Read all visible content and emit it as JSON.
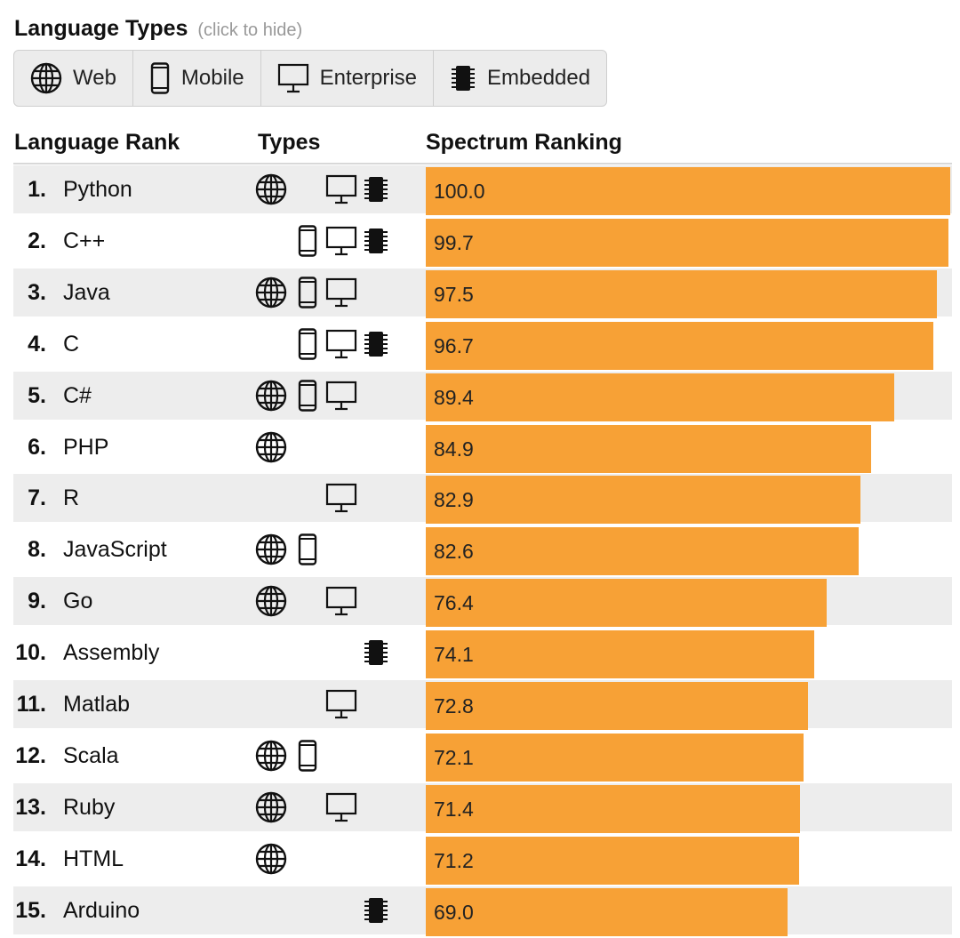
{
  "header": {
    "title": "Language Types",
    "hint": "(click to hide)"
  },
  "type_buttons": [
    {
      "label": "Web",
      "icon": "globe-icon"
    },
    {
      "label": "Mobile",
      "icon": "mobile-icon"
    },
    {
      "label": "Enterprise",
      "icon": "desktop-icon"
    },
    {
      "label": "Embedded",
      "icon": "chip-icon"
    }
  ],
  "columns": {
    "rank": "Language Rank",
    "types": "Types",
    "spectrum": "Spectrum Ranking"
  },
  "colors": {
    "bar": "#f7a136",
    "alt_row": "#ededed"
  },
  "chart_data": {
    "type": "bar",
    "orientation": "horizontal",
    "title": "",
    "xlabel": "",
    "ylabel": "",
    "xlim": [
      0,
      100
    ],
    "categories": [
      "Python",
      "C++",
      "Java",
      "C",
      "C#",
      "PHP",
      "R",
      "JavaScript",
      "Go",
      "Assembly",
      "Matlab",
      "Scala",
      "Ruby",
      "HTML",
      "Arduino"
    ],
    "rows": [
      {
        "rank": "1.",
        "name": "Python",
        "value": 100.0,
        "label": "100.0",
        "types": {
          "web": true,
          "mobile": false,
          "enterprise": true,
          "embedded": true
        }
      },
      {
        "rank": "2.",
        "name": "C++",
        "value": 99.7,
        "label": "99.7",
        "types": {
          "web": false,
          "mobile": true,
          "enterprise": true,
          "embedded": true
        }
      },
      {
        "rank": "3.",
        "name": "Java",
        "value": 97.5,
        "label": "97.5",
        "types": {
          "web": true,
          "mobile": true,
          "enterprise": true,
          "embedded": false
        }
      },
      {
        "rank": "4.",
        "name": "C",
        "value": 96.7,
        "label": "96.7",
        "types": {
          "web": false,
          "mobile": true,
          "enterprise": true,
          "embedded": true
        }
      },
      {
        "rank": "5.",
        "name": "C#",
        "value": 89.4,
        "label": "89.4",
        "types": {
          "web": true,
          "mobile": true,
          "enterprise": true,
          "embedded": false
        }
      },
      {
        "rank": "6.",
        "name": "PHP",
        "value": 84.9,
        "label": "84.9",
        "types": {
          "web": true,
          "mobile": false,
          "enterprise": false,
          "embedded": false
        }
      },
      {
        "rank": "7.",
        "name": "R",
        "value": 82.9,
        "label": "82.9",
        "types": {
          "web": false,
          "mobile": false,
          "enterprise": true,
          "embedded": false
        }
      },
      {
        "rank": "8.",
        "name": "JavaScript",
        "value": 82.6,
        "label": "82.6",
        "types": {
          "web": true,
          "mobile": true,
          "enterprise": false,
          "embedded": false
        }
      },
      {
        "rank": "9.",
        "name": "Go",
        "value": 76.4,
        "label": "76.4",
        "types": {
          "web": true,
          "mobile": false,
          "enterprise": true,
          "embedded": false
        }
      },
      {
        "rank": "10.",
        "name": "Assembly",
        "value": 74.1,
        "label": "74.1",
        "types": {
          "web": false,
          "mobile": false,
          "enterprise": false,
          "embedded": true
        }
      },
      {
        "rank": "11.",
        "name": "Matlab",
        "value": 72.8,
        "label": "72.8",
        "types": {
          "web": false,
          "mobile": false,
          "enterprise": true,
          "embedded": false
        }
      },
      {
        "rank": "12.",
        "name": "Scala",
        "value": 72.1,
        "label": "72.1",
        "types": {
          "web": true,
          "mobile": true,
          "enterprise": false,
          "embedded": false
        }
      },
      {
        "rank": "13.",
        "name": "Ruby",
        "value": 71.4,
        "label": "71.4",
        "types": {
          "web": true,
          "mobile": false,
          "enterprise": true,
          "embedded": false
        }
      },
      {
        "rank": "14.",
        "name": "HTML",
        "value": 71.2,
        "label": "71.2",
        "types": {
          "web": true,
          "mobile": false,
          "enterprise": false,
          "embedded": false
        }
      },
      {
        "rank": "15.",
        "name": "Arduino",
        "value": 69.0,
        "label": "69.0",
        "types": {
          "web": false,
          "mobile": false,
          "enterprise": false,
          "embedded": true
        }
      }
    ]
  }
}
